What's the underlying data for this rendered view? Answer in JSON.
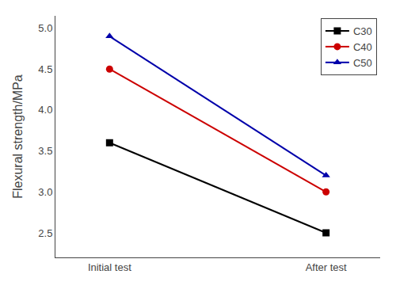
{
  "chart_data": {
    "type": "line",
    "categories": [
      "Initial test",
      "After test"
    ],
    "series": [
      {
        "name": "C30",
        "color": "#000000",
        "marker": "square",
        "values": [
          3.6,
          2.5
        ]
      },
      {
        "name": "C40",
        "color": "#cc0000",
        "marker": "circle",
        "values": [
          4.5,
          3.0
        ]
      },
      {
        "name": "C50",
        "color": "#0000aa",
        "marker": "triangle-up",
        "values": [
          4.9,
          3.2
        ]
      }
    ],
    "ylabel": "Flexural strength/MPa",
    "ylim": [
      2.2,
      5.15
    ],
    "yticks": [
      2.5,
      {
        "value": 3,
        "label": "3.0"
      },
      3.5,
      {
        "value": 4,
        "label": "4.0"
      },
      4.5,
      {
        "value": 5,
        "label": "5.0"
      }
    ],
    "legend": "upper right",
    "grid": false
  }
}
